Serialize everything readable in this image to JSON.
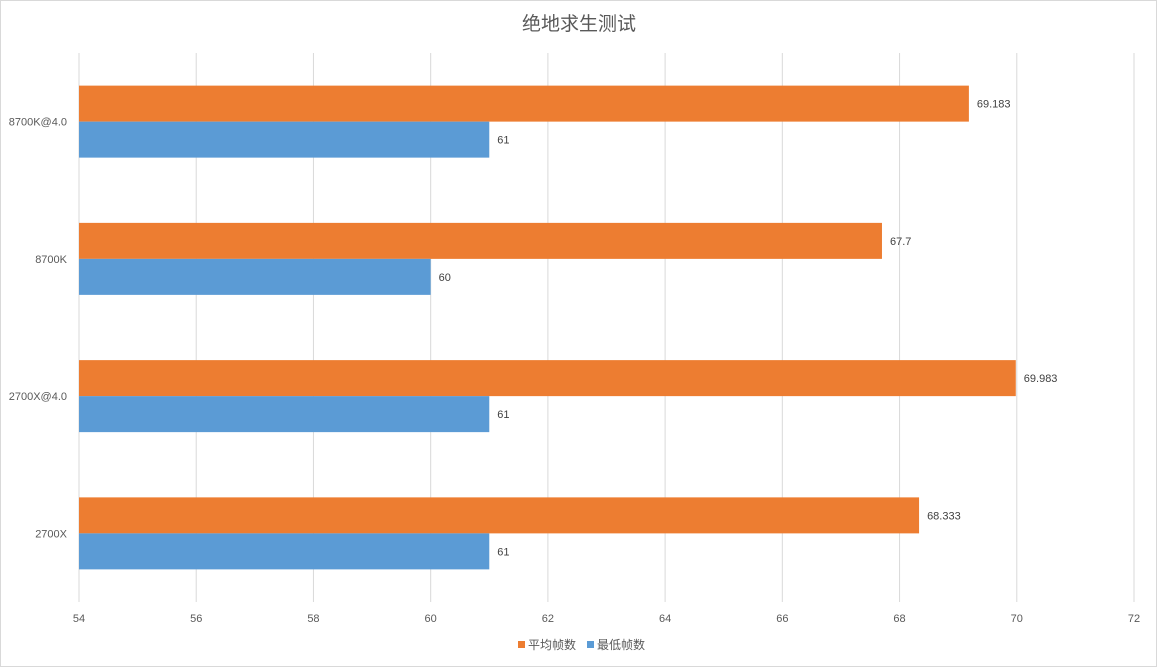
{
  "chart_data": {
    "type": "bar",
    "orientation": "horizontal",
    "title": "绝地求生测试",
    "categories": [
      "8700K@4.0",
      "8700K",
      "2700X@4.0",
      "2700X"
    ],
    "series": [
      {
        "name": "平均帧数",
        "color": "#ED7D31",
        "values": [
          69.183,
          67.7,
          69.983,
          68.333
        ],
        "labels": [
          "69.183",
          "67.7",
          "69.983",
          "68.333"
        ]
      },
      {
        "name": "最低帧数",
        "color": "#5B9BD5",
        "values": [
          61,
          60,
          61,
          61
        ],
        "labels": [
          "61",
          "60",
          "61",
          "61"
        ]
      }
    ],
    "xlim": [
      54,
      72
    ],
    "xticks": [
      "54",
      "56",
      "58",
      "60",
      "62",
      "64",
      "66",
      "68",
      "70",
      "72"
    ],
    "grid": true,
    "legend": "bottom"
  }
}
